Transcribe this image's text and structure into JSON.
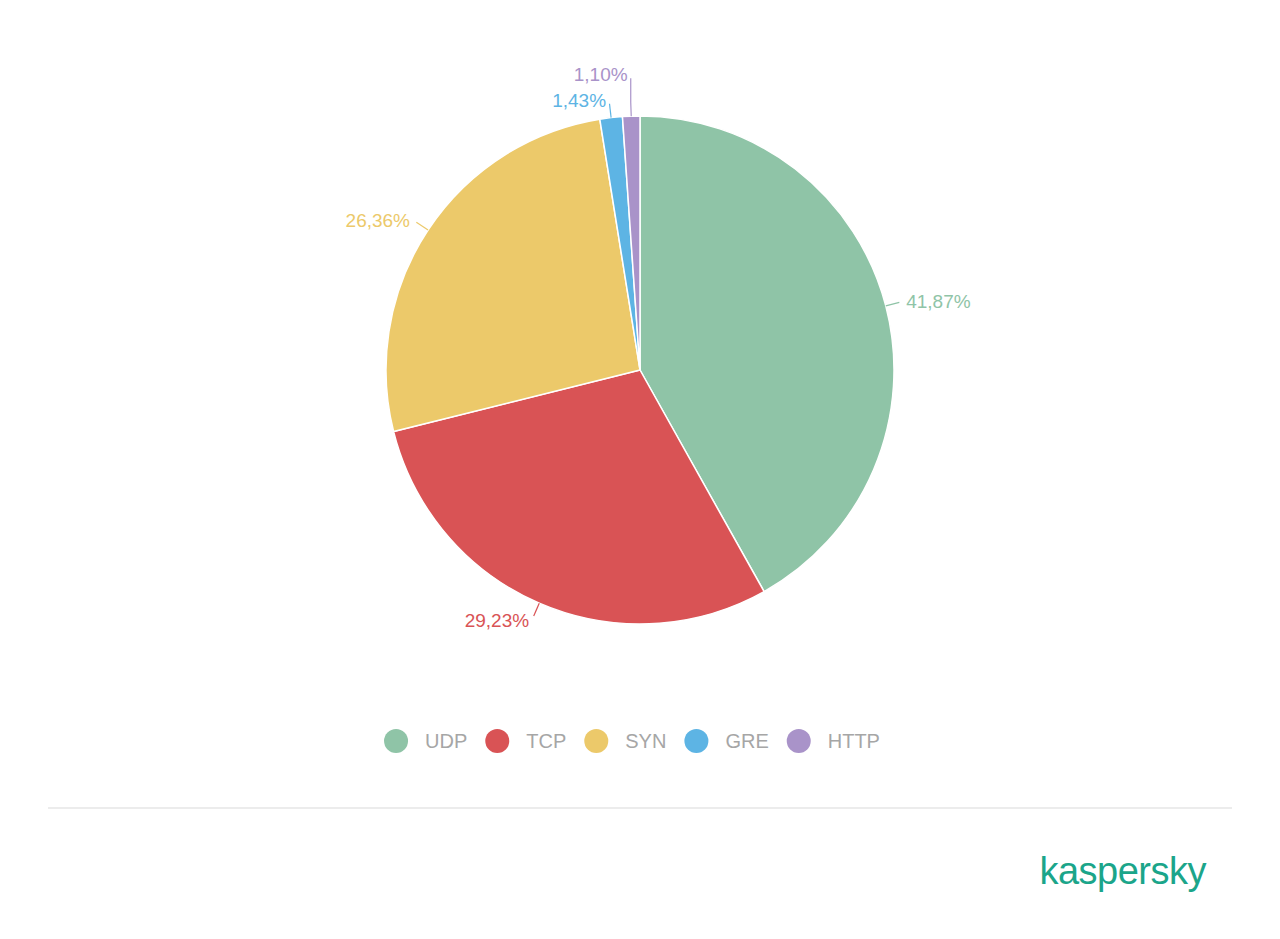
{
  "chart_data": {
    "type": "pie",
    "categories": [
      "UDP",
      "TCP",
      "SYN",
      "GRE",
      "HTTP"
    ],
    "values": [
      41.87,
      29.23,
      26.36,
      1.43,
      1.1
    ],
    "value_labels": [
      "41,87%",
      "29,23%",
      "26,36%",
      "1,43%",
      "1,10%"
    ],
    "colors": [
      "#8fc4a7",
      "#d95355",
      "#ecc96a",
      "#5db4e4",
      "#a993c9"
    ],
    "data_labels": true,
    "legend": "bottom",
    "annotations": [
      "kaspersky"
    ]
  }
}
